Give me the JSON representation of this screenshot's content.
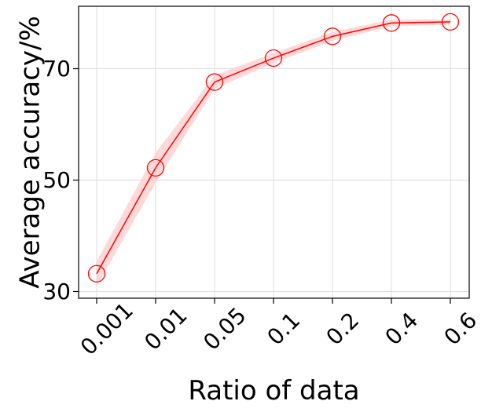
{
  "chart_data": {
    "type": "line",
    "title": "",
    "xlabel": "Ratio of data",
    "ylabel": "Average accuracy/%",
    "categories": [
      "0.001",
      "0.01",
      "0.05",
      "0.1",
      "0.2",
      "0.4",
      "0.6"
    ],
    "yticks": [
      30,
      50,
      70
    ],
    "ylim": [
      28.8,
      81.2
    ],
    "grid": true,
    "series": [
      {
        "values": [
          33.2,
          52.2,
          67.6,
          71.9,
          75.8,
          78.2,
          78.4
        ],
        "band_low": [
          31.0,
          49.5,
          66.4,
          71.0,
          75.0,
          77.6,
          77.9
        ],
        "band_high": [
          35.4,
          54.9,
          68.8,
          72.8,
          76.6,
          78.8,
          78.9
        ],
        "marker": "open-circle"
      }
    ],
    "colors": {
      "line": "#ff0000",
      "band": "#ffcccc",
      "grid": "#dddddd",
      "axis": "#000000"
    }
  }
}
